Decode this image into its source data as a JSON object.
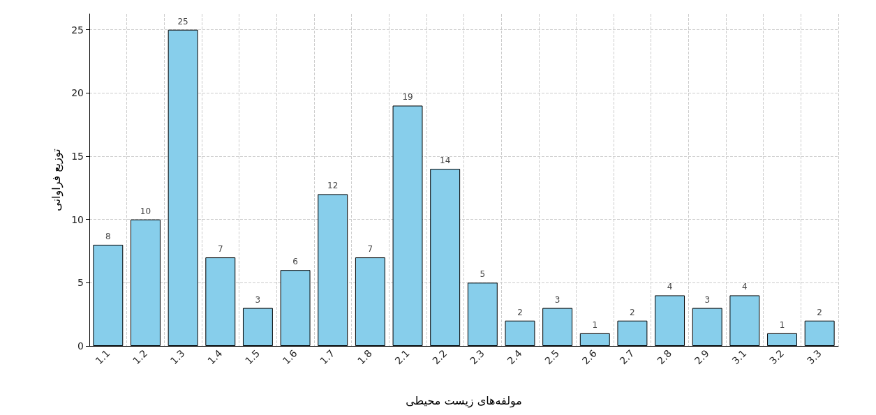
{
  "chart_data": {
    "type": "bar",
    "xlabel": "مولفه‌های زیست محیطی",
    "ylabel": "توزیع فراوانی",
    "categories": [
      "1.1",
      "1.2",
      "1.3",
      "1.4",
      "1.5",
      "1.6",
      "1.7",
      "1.8",
      "2.1",
      "2.2",
      "2.3",
      "2.4",
      "2.5",
      "2.6",
      "2.7",
      "2.8",
      "2.9",
      "3.1",
      "3.2",
      "3.3"
    ],
    "values": [
      8,
      10,
      25,
      7,
      3,
      6,
      12,
      7,
      19,
      14,
      5,
      2,
      3,
      1,
      2,
      4,
      3,
      4,
      1,
      2
    ],
    "color": "#87ceeb",
    "ylim": [
      0,
      26.25
    ],
    "yticks": [
      0,
      5,
      10,
      15,
      20,
      25
    ],
    "grid": true,
    "data_labels": true
  }
}
